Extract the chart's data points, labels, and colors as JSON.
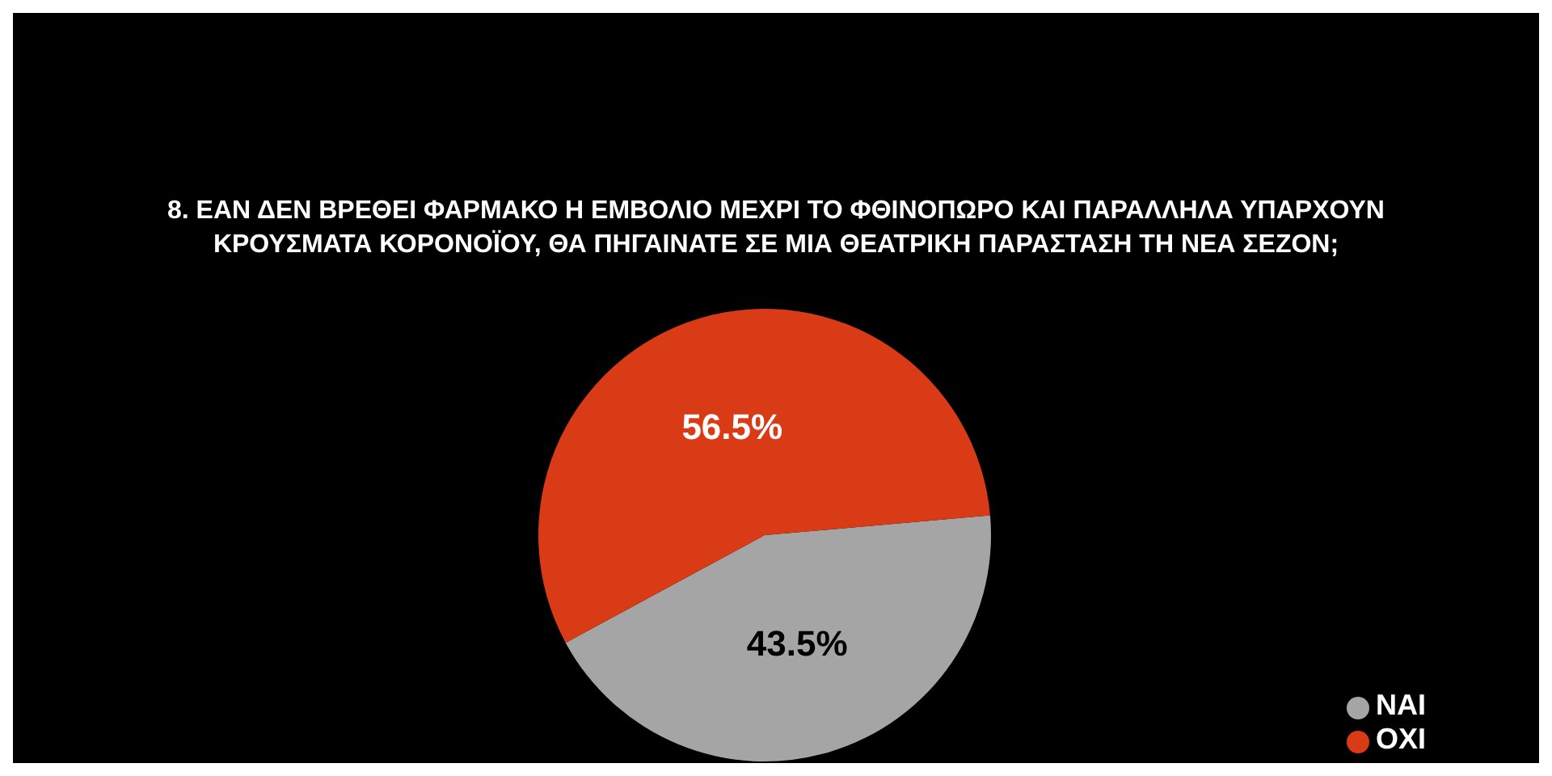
{
  "chart_data": {
    "type": "pie",
    "title": "8. ΕΑΝ ΔΕΝ ΒΡΕΘΕΙ ΦΑΡΜΑΚΟ Η ΕΜΒΟΛΙΟ ΜΕΧΡΙ ΤΟ ΦΘΙΝΟΠΩΡΟ ΚΑΙ ΠΑΡΑΛΛΗΛΑ ΥΠΑΡΧΟΥΝ ΚΡΟΥΣΜΑΤΑ ΚΟΡΟΝΟΪΟΥ, ΘΑ ΠΗΓΑΙΝΑΤΕ ΣΕ ΜΙΑ ΘΕΑΤΡΙΚΗ ΠΑΡΑΣΤΑΣΗ ΤΗ ΝΕΑ ΣΕΖΟΝ;",
    "categories": [
      "ΝΑΙ",
      "ΟΧΙ"
    ],
    "values": [
      43.5,
      56.5
    ],
    "colors": [
      "#a5a5a5",
      "#d83b16"
    ],
    "value_labels": [
      "43.5%",
      "56.5%"
    ],
    "legend": "bottom right",
    "marker": "circle"
  }
}
